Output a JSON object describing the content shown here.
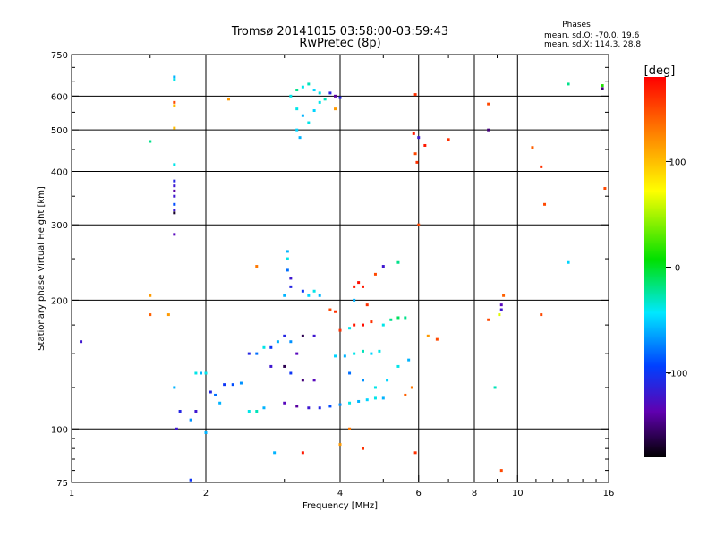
{
  "header": {
    "title": "Tromsø 20141015 03:58:00-03:59:43",
    "subtitle": "RwPretec (8p)"
  },
  "phases": {
    "heading": "Phases",
    "line1": "mean, sd,O: -70.0, 19.6",
    "line2": "mean, sd,X: 114.3, 28.8"
  },
  "colorbar": {
    "label": "[deg]",
    "range": [
      -180,
      180
    ],
    "ticks": [
      {
        "value": 100,
        "label": "100"
      },
      {
        "value": 0,
        "label": "0"
      },
      {
        "value": -100,
        "label": "-100"
      }
    ]
  },
  "chart_data": {
    "type": "scatter",
    "title": "Tromsø 20141015 03:58:00-03:59:43",
    "subtitle": "RwPretec (8p)",
    "xlabel": "Frequency [MHz]",
    "ylabel": "Stationary phase Virtual Height [km]",
    "x_scale": "log",
    "y_scale": "log",
    "xlim": [
      1,
      16
    ],
    "ylim": [
      75,
      750
    ],
    "xticks": [
      1,
      2,
      4,
      6,
      8,
      10,
      16
    ],
    "xtick_labels": [
      "1",
      "2",
      "4",
      "6",
      "8",
      "10",
      "16"
    ],
    "yticks": [
      75,
      100,
      200,
      300,
      400,
      500,
      600,
      750
    ],
    "ytick_labels": [
      "75",
      "100",
      "200",
      "300",
      "400",
      "500",
      "600",
      "750"
    ],
    "grid_x": [
      2,
      4,
      6,
      8,
      10
    ],
    "grid_y": [
      100,
      200,
      300,
      400,
      500,
      600
    ],
    "color_scale": "phase [deg], -180 to 180",
    "points": [
      [
        1.05,
        160,
        -120
      ],
      [
        1.5,
        470,
        -20
      ],
      [
        1.5,
        205,
        120
      ],
      [
        1.5,
        185,
        140
      ],
      [
        1.65,
        185,
        120
      ],
      [
        1.7,
        665,
        -60
      ],
      [
        1.7,
        655,
        -40
      ],
      [
        1.7,
        580,
        150
      ],
      [
        1.7,
        570,
        110
      ],
      [
        1.7,
        505,
        110
      ],
      [
        1.7,
        415,
        -40
      ],
      [
        1.7,
        380,
        -110
      ],
      [
        1.7,
        370,
        -120
      ],
      [
        1.7,
        360,
        -140
      ],
      [
        1.7,
        350,
        -120
      ],
      [
        1.7,
        335,
        -90
      ],
      [
        1.7,
        325,
        -120
      ],
      [
        1.7,
        320,
        -170
      ],
      [
        1.7,
        285,
        -130
      ],
      [
        1.7,
        125,
        -60
      ],
      [
        1.75,
        110,
        -110
      ],
      [
        1.72,
        100,
        -120
      ],
      [
        1.85,
        76,
        -100
      ],
      [
        1.9,
        135,
        -40
      ],
      [
        1.95,
        135,
        -60
      ],
      [
        2.0,
        135,
        -40
      ],
      [
        2.05,
        122,
        -110
      ],
      [
        2.1,
        120,
        -80
      ],
      [
        2.0,
        98,
        -60
      ],
      [
        1.85,
        105,
        -70
      ],
      [
        1.9,
        110,
        -120
      ],
      [
        2.15,
        115,
        -60
      ],
      [
        2.25,
        590,
        120
      ],
      [
        2.2,
        127,
        -100
      ],
      [
        2.3,
        127,
        -90
      ],
      [
        2.4,
        128,
        -70
      ],
      [
        2.5,
        110,
        -40
      ],
      [
        2.6,
        110,
        -30
      ],
      [
        2.7,
        112,
        -60
      ],
      [
        2.6,
        240,
        130
      ],
      [
        2.5,
        150,
        -110
      ],
      [
        2.6,
        150,
        -80
      ],
      [
        2.7,
        155,
        -40
      ],
      [
        2.8,
        155,
        -100
      ],
      [
        2.9,
        160,
        -60
      ],
      [
        3.0,
        165,
        -110
      ],
      [
        3.1,
        160,
        -70
      ],
      [
        3.2,
        150,
        -130
      ],
      [
        2.8,
        140,
        -120
      ],
      [
        3.0,
        140,
        -160
      ],
      [
        3.1,
        135,
        -100
      ],
      [
        2.85,
        88,
        -60
      ],
      [
        3.05,
        260,
        -60
      ],
      [
        3.05,
        250,
        -40
      ],
      [
        3.05,
        235,
        -80
      ],
      [
        3.1,
        225,
        -120
      ],
      [
        3.1,
        215,
        -110
      ],
      [
        3.0,
        205,
        -60
      ],
      [
        3.3,
        210,
        -100
      ],
      [
        3.4,
        205,
        -50
      ],
      [
        3.5,
        210,
        -40
      ],
      [
        3.6,
        205,
        -60
      ],
      [
        3.1,
        600,
        -40
      ],
      [
        3.2,
        620,
        -20
      ],
      [
        3.3,
        630,
        -40
      ],
      [
        3.4,
        640,
        -30
      ],
      [
        3.5,
        620,
        -50
      ],
      [
        3.6,
        610,
        -40
      ],
      [
        3.7,
        590,
        -30
      ],
      [
        3.2,
        560,
        -40
      ],
      [
        3.3,
        540,
        -60
      ],
      [
        3.4,
        520,
        -40
      ],
      [
        3.5,
        555,
        -50
      ],
      [
        3.6,
        580,
        -40
      ],
      [
        3.2,
        500,
        -50
      ],
      [
        3.25,
        480,
        -60
      ],
      [
        3.8,
        610,
        -110
      ],
      [
        3.9,
        600,
        -140
      ],
      [
        4.0,
        595,
        -110
      ],
      [
        3.9,
        560,
        120
      ],
      [
        3.0,
        115,
        -130
      ],
      [
        3.2,
        113,
        -140
      ],
      [
        3.4,
        112,
        -120
      ],
      [
        3.6,
        112,
        -110
      ],
      [
        3.8,
        113,
        -90
      ],
      [
        4.0,
        114,
        -70
      ],
      [
        4.2,
        115,
        -40
      ],
      [
        4.4,
        116,
        -60
      ],
      [
        4.6,
        117,
        -50
      ],
      [
        4.8,
        118,
        -40
      ],
      [
        5.0,
        118,
        -60
      ],
      [
        3.3,
        88,
        170
      ],
      [
        3.3,
        165,
        -160
      ],
      [
        3.5,
        165,
        -120
      ],
      [
        3.3,
        130,
        -150
      ],
      [
        3.5,
        130,
        -130
      ],
      [
        3.8,
        190,
        150
      ],
      [
        3.9,
        188,
        160
      ],
      [
        3.9,
        148,
        -50
      ],
      [
        4.1,
        148,
        -60
      ],
      [
        4.3,
        150,
        -40
      ],
      [
        4.5,
        152,
        -30
      ],
      [
        4.7,
        150,
        -50
      ],
      [
        4.9,
        152,
        -40
      ],
      [
        4.0,
        170,
        160
      ],
      [
        4.2,
        172,
        -40
      ],
      [
        4.3,
        175,
        170
      ],
      [
        4.5,
        175,
        175
      ],
      [
        4.7,
        178,
        160
      ],
      [
        5.0,
        175,
        -40
      ],
      [
        5.2,
        180,
        -20
      ],
      [
        5.4,
        182,
        -10
      ],
      [
        5.6,
        182,
        -20
      ],
      [
        4.3,
        215,
        170
      ],
      [
        4.4,
        220,
        175
      ],
      [
        4.5,
        215,
        170
      ],
      [
        4.3,
        200,
        -60
      ],
      [
        4.6,
        195,
        160
      ],
      [
        4.8,
        230,
        150
      ],
      [
        5.0,
        240,
        -120
      ],
      [
        5.4,
        245,
        -20
      ],
      [
        4.2,
        135,
        -80
      ],
      [
        4.5,
        130,
        -70
      ],
      [
        4.8,
        125,
        -40
      ],
      [
        5.1,
        130,
        -50
      ],
      [
        5.4,
        140,
        -40
      ],
      [
        5.7,
        145,
        -60
      ],
      [
        4.0,
        92,
        120
      ],
      [
        4.2,
        100,
        130
      ],
      [
        4.5,
        90,
        160
      ],
      [
        5.6,
        120,
        140
      ],
      [
        5.8,
        125,
        130
      ],
      [
        5.9,
        605,
        160
      ],
      [
        5.85,
        490,
        170
      ],
      [
        6.0,
        480,
        -120
      ],
      [
        6.2,
        460,
        170
      ],
      [
        5.9,
        440,
        150
      ],
      [
        5.95,
        420,
        160
      ],
      [
        7.0,
        475,
        160
      ],
      [
        6.0,
        300,
        150
      ],
      [
        5.9,
        88,
        160
      ],
      [
        6.6,
        162,
        150
      ],
      [
        6.3,
        165,
        120
      ],
      [
        8.6,
        575,
        150
      ],
      [
        8.6,
        500,
        -150
      ],
      [
        9.3,
        205,
        140
      ],
      [
        9.2,
        195,
        -130
      ],
      [
        9.2,
        190,
        -120
      ],
      [
        9.1,
        185,
        80
      ],
      [
        8.6,
        180,
        150
      ],
      [
        8.9,
        125,
        -30
      ],
      [
        9.2,
        80,
        150
      ],
      [
        10.8,
        455,
        140
      ],
      [
        11.3,
        410,
        160
      ],
      [
        11.5,
        335,
        150
      ],
      [
        11.3,
        185,
        150
      ],
      [
        13.0,
        640,
        -20
      ],
      [
        13.0,
        245,
        -50
      ],
      [
        15.5,
        625,
        -150
      ],
      [
        15.5,
        635,
        20
      ],
      [
        15.7,
        365,
        150
      ]
    ]
  }
}
